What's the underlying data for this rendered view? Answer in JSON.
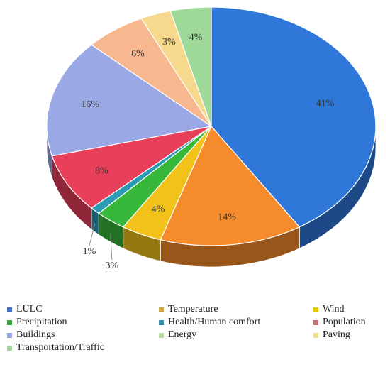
{
  "chart_data": {
    "type": "pie",
    "title": "",
    "slices": [
      {
        "label": "LULC",
        "value": 41,
        "data_label": "41%",
        "color": "#2f77d9"
      },
      {
        "label": "Temperature",
        "value": 14,
        "data_label": "14%",
        "color": "#f58b2a"
      },
      {
        "label": "Wind",
        "value": 4,
        "data_label": "4%",
        "color": "#f2c21a"
      },
      {
        "label": "Precipitation",
        "value": 3,
        "data_label": "3%",
        "color": "#38b83a"
      },
      {
        "label": "Health/Human comfort",
        "value": 1,
        "data_label": "1%",
        "color": "#2b9bb3"
      },
      {
        "label": "Population",
        "value": 8,
        "data_label": "8%",
        "color": "#e83f5a"
      },
      {
        "label": "Buildings",
        "value": 16,
        "data_label": "16%",
        "color": "#9ba8e6"
      },
      {
        "label": "Energy",
        "value": 6,
        "data_label": "6%",
        "color": "#f7b890"
      },
      {
        "label": "Paving",
        "value": 3,
        "data_label": "3%",
        "color": "#f6d98c"
      },
      {
        "label": "Transportation/Traffic",
        "value": 4,
        "data_label": "4%",
        "color": "#9fd99a"
      }
    ],
    "legend_position": "bottom",
    "style": "3d-pie"
  },
  "legend_items": [
    {
      "label": "LULC",
      "color": "#3f6fd0"
    },
    {
      "label": "Temperature",
      "color": "#c9a640"
    },
    {
      "label": "Wind",
      "color": "#e3c800"
    },
    {
      "label": "Precipitation",
      "color": "#3aa33a"
    },
    {
      "label": "Health/Human comfort",
      "color": "#3a8fb0"
    },
    {
      "label": "Population",
      "color": "#c07070"
    },
    {
      "label": "Buildings",
      "color": "#9aa6e0"
    },
    {
      "label": "Energy",
      "color": "#b8d8a0"
    },
    {
      "label": "Paving",
      "color": "#eee090"
    },
    {
      "label": "Transportation/Traffic",
      "color": "#a8d8a0"
    }
  ]
}
